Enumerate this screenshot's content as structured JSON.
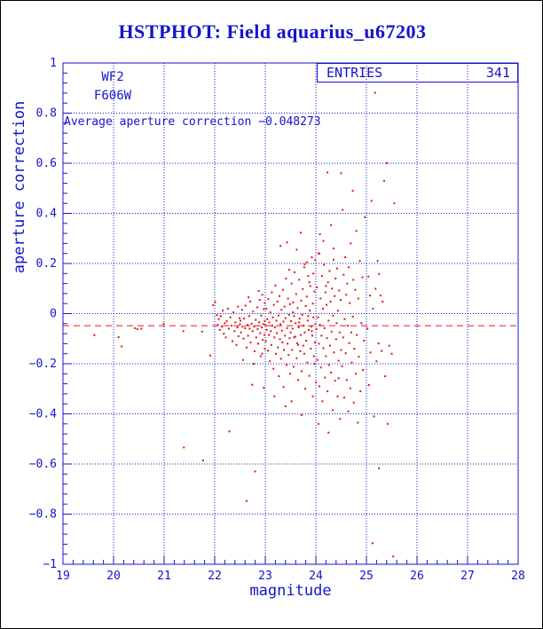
{
  "title": {
    "text": "HSTPHOT: Field aquarius_u67203"
  },
  "stats_box": {
    "label": "ENTRIES",
    "value": "341"
  },
  "annotations": {
    "camera": "WF2",
    "filter": "F606W",
    "average_text": "Average aperture correction −0.048273"
  },
  "axes": {
    "xlabel": "magnitude",
    "ylabel": "aperture correction",
    "x_tick_values": [
      19,
      20,
      21,
      22,
      23,
      24,
      25,
      26,
      27,
      28
    ],
    "x_tick_labels": [
      "19",
      "20",
      "21",
      "22",
      "23",
      "24",
      "25",
      "26",
      "27",
      "28"
    ],
    "y_tick_values": [
      1,
      0.8,
      0.6,
      0.4,
      0.2,
      0,
      -0.2,
      -0.4,
      -0.6,
      -0.8,
      -1
    ],
    "y_tick_labels": [
      "1",
      "0.8",
      "0.6",
      "0.4",
      "0.2",
      "0",
      "−0.2",
      "−0.4",
      "−0.6",
      "−0.8",
      "−1"
    ],
    "x_minor_step": 0.2,
    "y_minor_step": 0.04
  },
  "colors": {
    "axis": "#1414cd",
    "grid": "#1414cd",
    "marker": "#e51212",
    "average_line": "#e51212",
    "title": "#1414cd",
    "border": "#000000",
    "background": "#ffffff"
  },
  "chart_data": {
    "type": "scatter",
    "title": "HSTPHOT: Field aquarius_u67203",
    "xlabel": "magnitude",
    "ylabel": "aperture correction",
    "xlim": [
      19,
      28
    ],
    "ylim": [
      -1,
      1
    ],
    "grid": "dotted at major ticks, both axes",
    "legend_position": "none",
    "entries": 341,
    "average_line": {
      "y": -0.048273,
      "style": "dashed",
      "color": "#e51212"
    },
    "marker": {
      "shape": "square",
      "size": 2,
      "color": "#e51212"
    },
    "points": [
      [
        19.62,
        -0.086
      ],
      [
        20.1,
        -0.094
      ],
      [
        20.16,
        -0.131
      ],
      [
        20.42,
        -0.058
      ],
      [
        20.47,
        -0.062
      ],
      [
        20.55,
        -0.06
      ],
      [
        20.99,
        -0.041
      ],
      [
        21.38,
        -0.07
      ],
      [
        21.39,
        -0.534
      ],
      [
        21.75,
        -0.072
      ],
      [
        21.77,
        -0.586
      ],
      [
        21.91,
        -0.167
      ],
      [
        21.97,
        0.034
      ],
      [
        22.01,
        0.046
      ],
      [
        22.04,
        -0.006
      ],
      [
        22.06,
        -0.045
      ],
      [
        22.08,
        -0.022
      ],
      [
        22.1,
        -0.065
      ],
      [
        22.12,
        -0.01
      ],
      [
        22.14,
        -0.052
      ],
      [
        22.16,
        0.012
      ],
      [
        22.18,
        -0.08
      ],
      [
        22.2,
        -0.038
      ],
      [
        22.22,
        -0.095
      ],
      [
        22.24,
        -0.03
      ],
      [
        22.26,
        0.02
      ],
      [
        22.28,
        -0.06
      ],
      [
        22.29,
        -0.47
      ],
      [
        22.31,
        -0.015
      ],
      [
        22.33,
        -0.048
      ],
      [
        22.35,
        -0.11
      ],
      [
        22.37,
        0.005
      ],
      [
        22.39,
        -0.07
      ],
      [
        22.41,
        -0.035
      ],
      [
        22.43,
        -0.125
      ],
      [
        22.45,
        -0.055
      ],
      [
        22.46,
        0.028
      ],
      [
        22.47,
        -0.09
      ],
      [
        22.49,
        -0.018
      ],
      [
        22.5,
        -0.042
      ],
      [
        22.51,
        -0.028
      ],
      [
        22.52,
        -0.075
      ],
      [
        22.54,
        0.015
      ],
      [
        22.55,
        -0.052
      ],
      [
        22.57,
        -0.1
      ],
      [
        22.58,
        -0.02
      ],
      [
        22.6,
        -0.058
      ],
      [
        22.61,
        0.032
      ],
      [
        22.63,
        -0.748
      ],
      [
        22.63,
        -0.135
      ],
      [
        22.65,
        -0.045
      ],
      [
        22.66,
        -0.088
      ],
      [
        22.68,
        -0.01
      ],
      [
        22.69,
        -0.06
      ],
      [
        22.7,
        0.048
      ],
      [
        22.71,
        -0.115
      ],
      [
        22.73,
        -0.04
      ],
      [
        22.74,
        -0.284
      ],
      [
        22.75,
        -0.07
      ],
      [
        22.76,
        0.008
      ],
      [
        22.78,
        -0.052
      ],
      [
        22.79,
        -0.15
      ],
      [
        22.8,
        -0.63
      ],
      [
        22.81,
        -0.025
      ],
      [
        22.82,
        -0.095
      ],
      [
        22.84,
        0.025
      ],
      [
        22.85,
        -0.062
      ],
      [
        22.86,
        -0.12
      ],
      [
        22.88,
        -0.035
      ],
      [
        22.89,
        0.055
      ],
      [
        22.9,
        -0.078
      ],
      [
        22.91,
        -0.17
      ],
      [
        22.92,
        -0.008
      ],
      [
        22.93,
        -0.055
      ],
      [
        22.94,
        0.075
      ],
      [
        22.95,
        -0.105
      ],
      [
        22.96,
        -0.042
      ],
      [
        22.97,
        -0.296
      ],
      [
        22.97,
        0.018
      ],
      [
        22.98,
        -0.085
      ],
      [
        22.99,
        -0.03
      ],
      [
        22.99,
        -0.14
      ],
      [
        22.56,
        -0.185
      ],
      [
        22.67,
        0.065
      ],
      [
        22.77,
        -0.2
      ],
      [
        22.87,
        0.09
      ],
      [
        22.94,
        -0.16
      ],
      [
        22.99,
        0.042
      ],
      [
        23.0,
        -0.045
      ],
      [
        23.01,
        -0.11
      ],
      [
        23.02,
        0.02
      ],
      [
        23.03,
        -0.065
      ],
      [
        23.04,
        -0.022
      ],
      [
        23.05,
        -0.148
      ],
      [
        23.06,
        0.058
      ],
      [
        23.07,
        -0.085
      ],
      [
        23.08,
        -0.035
      ],
      [
        23.09,
        -0.19
      ],
      [
        23.1,
        0.005
      ],
      [
        23.11,
        -0.07
      ],
      [
        23.12,
        -0.125
      ],
      [
        23.13,
        0.085
      ],
      [
        23.14,
        -0.048
      ],
      [
        23.15,
        -0.015
      ],
      [
        23.16,
        -0.22
      ],
      [
        23.17,
        0.035
      ],
      [
        23.18,
        -0.33
      ],
      [
        23.18,
        -0.095
      ],
      [
        23.19,
        -0.055
      ],
      [
        23.2,
        0.112
      ],
      [
        23.21,
        -0.16
      ],
      [
        23.22,
        -0.028
      ],
      [
        23.23,
        -0.078
      ],
      [
        23.24,
        0.048
      ],
      [
        23.25,
        -0.135
      ],
      [
        23.26,
        -0.008
      ],
      [
        23.27,
        -0.25
      ],
      [
        23.28,
        0.07
      ],
      [
        23.29,
        -0.102
      ],
      [
        23.3,
        0.27
      ],
      [
        23.3,
        -0.042
      ],
      [
        23.31,
        -0.18
      ],
      [
        23.32,
        0.015
      ],
      [
        23.33,
        -0.068
      ],
      [
        23.34,
        -0.115
      ],
      [
        23.35,
        0.095
      ],
      [
        23.36,
        -0.293
      ],
      [
        23.36,
        -0.032
      ],
      [
        23.37,
        -0.145
      ],
      [
        23.38,
        0.028
      ],
      [
        23.39,
        -0.088
      ],
      [
        23.4,
        -0.37
      ],
      [
        23.4,
        -0.018
      ],
      [
        23.41,
        0.14
      ],
      [
        23.42,
        -0.205
      ],
      [
        23.43,
        0.284
      ],
      [
        23.43,
        -0.058
      ],
      [
        23.44,
        -0.12
      ],
      [
        23.45,
        0.06
      ],
      [
        23.46,
        -0.165
      ],
      [
        23.47,
        -0.005
      ],
      [
        23.47,
        0.175
      ],
      [
        23.48,
        -0.098
      ],
      [
        23.49,
        -0.24
      ],
      [
        23.49,
        0.038
      ],
      [
        23.5,
        -0.075
      ],
      [
        23.51,
        -0.03
      ],
      [
        23.52,
        0.12
      ],
      [
        23.53,
        -0.145
      ],
      [
        23.54,
        -0.06
      ],
      [
        23.55,
        0.045
      ],
      [
        23.56,
        -0.212
      ],
      [
        23.57,
        -0.01
      ],
      [
        23.58,
        0.165
      ],
      [
        23.59,
        -0.092
      ],
      [
        23.6,
        -0.038
      ],
      [
        23.61,
        0.078
      ],
      [
        23.62,
        -0.178
      ],
      [
        23.63,
        -0.118
      ],
      [
        23.64,
        0.022
      ],
      [
        23.65,
        -0.265
      ],
      [
        23.66,
        -0.055
      ],
      [
        23.67,
        0.135
      ],
      [
        23.68,
        -0.02
      ],
      [
        23.69,
        -0.15
      ],
      [
        23.7,
        0.323
      ],
      [
        23.7,
        -0.085
      ],
      [
        23.71,
        0.052
      ],
      [
        23.72,
        -0.23
      ],
      [
        23.73,
        -0.005
      ],
      [
        23.74,
        0.098
      ],
      [
        23.75,
        -0.128
      ],
      [
        23.76,
        -0.048
      ],
      [
        23.77,
        0.185
      ],
      [
        23.78,
        0.197
      ],
      [
        23.78,
        -0.075
      ],
      [
        23.79,
        -0.3
      ],
      [
        23.8,
        0.03
      ],
      [
        23.81,
        -0.108
      ],
      [
        23.82,
        0.068
      ],
      [
        23.83,
        -0.195
      ],
      [
        23.84,
        -0.028
      ],
      [
        23.85,
        0.15
      ],
      [
        23.86,
        -0.065
      ],
      [
        23.87,
        -0.248
      ],
      [
        23.88,
        0.012
      ],
      [
        23.89,
        0.11
      ],
      [
        23.9,
        -0.14
      ],
      [
        23.91,
        -0.052
      ],
      [
        23.92,
        0.225
      ],
      [
        23.93,
        -0.088
      ],
      [
        23.94,
        -0.33
      ],
      [
        23.94,
        0.04
      ],
      [
        23.95,
        -0.015
      ],
      [
        23.96,
        -0.17
      ],
      [
        23.97,
        0.088
      ],
      [
        23.98,
        -0.115
      ],
      [
        23.99,
        0.213
      ],
      [
        23.99,
        -0.042
      ],
      [
        24.0,
        -0.275
      ],
      [
        23.52,
        -0.35
      ],
      [
        23.62,
        0.255
      ],
      [
        23.72,
        -0.405
      ],
      [
        23.82,
        0.205
      ],
      [
        23.57,
        -0.095
      ],
      [
        23.67,
        -0.035
      ],
      [
        23.77,
        -0.16
      ],
      [
        23.87,
        0.125
      ],
      [
        23.92,
        -0.07
      ],
      [
        23.97,
        -0.2
      ],
      [
        23.55,
        0.005
      ],
      [
        23.65,
        -0.125
      ],
      [
        23.85,
        -0.01
      ],
      [
        23.95,
        0.16
      ],
      [
        24.01,
        -0.062
      ],
      [
        24.02,
        0.105
      ],
      [
        24.03,
        -0.185
      ],
      [
        24.04,
        -0.015
      ],
      [
        24.05,
        0.24
      ],
      [
        24.06,
        -0.12
      ],
      [
        24.07,
        0.24
      ],
      [
        24.07,
        -0.29
      ],
      [
        24.08,
        0.317
      ],
      [
        24.08,
        -0.045
      ],
      [
        24.09,
        0.06
      ],
      [
        24.1,
        -0.215
      ],
      [
        24.11,
        -0.088
      ],
      [
        24.12,
        0.15
      ],
      [
        24.13,
        -0.35
      ],
      [
        24.14,
        0.02
      ],
      [
        24.15,
        -0.138
      ],
      [
        24.16,
        0.195
      ],
      [
        24.17,
        -0.058
      ],
      [
        24.18,
        -0.255
      ],
      [
        24.19,
        0.085
      ],
      [
        24.2,
        -0.17
      ],
      [
        24.21,
        0.035
      ],
      [
        24.22,
        -0.098
      ],
      [
        24.23,
        0.563
      ],
      [
        24.23,
        -0.31
      ],
      [
        24.24,
        0.125
      ],
      [
        24.25,
        -0.028
      ],
      [
        24.26,
        -0.205
      ],
      [
        24.27,
        0.17
      ],
      [
        24.28,
        -0.128
      ],
      [
        24.29,
        0.048
      ],
      [
        24.3,
        0.353
      ],
      [
        24.3,
        -0.235
      ],
      [
        24.31,
        -0.072
      ],
      [
        24.32,
        0.1
      ],
      [
        24.33,
        -0.385
      ],
      [
        24.34,
        -0.008
      ],
      [
        24.35,
        0.215
      ],
      [
        24.36,
        -0.155
      ],
      [
        24.37,
        0.07
      ],
      [
        24.38,
        -0.268
      ],
      [
        24.39,
        0.14
      ],
      [
        24.4,
        -0.102
      ],
      [
        24.41,
        -0.038
      ],
      [
        24.42,
        0.18
      ],
      [
        24.43,
        -0.33
      ],
      [
        24.44,
        0.012
      ],
      [
        24.45,
        -0.188
      ],
      [
        24.46,
        0.092
      ],
      [
        24.47,
        -0.075
      ],
      [
        24.48,
        -0.42
      ],
      [
        24.49,
        0.055
      ],
      [
        24.5,
        -0.145
      ],
      [
        24.05,
        -0.44
      ],
      [
        24.15,
        0.29
      ],
      [
        24.25,
        -0.475
      ],
      [
        24.35,
        0.26
      ],
      [
        24.45,
        -0.258
      ],
      [
        24.2,
        0.11
      ],
      [
        24.5,
        0.56
      ],
      [
        24.52,
        -0.21
      ],
      [
        24.53,
        0.414
      ],
      [
        24.54,
        -0.095
      ],
      [
        24.55,
        0.155
      ],
      [
        24.56,
        -0.335
      ],
      [
        24.57,
        -0.022
      ],
      [
        24.58,
        0.225
      ],
      [
        24.59,
        -0.158
      ],
      [
        24.6,
        0.075
      ],
      [
        24.61,
        -0.265
      ],
      [
        24.62,
        0.12
      ],
      [
        24.63,
        -0.048
      ],
      [
        24.64,
        -0.39
      ],
      [
        24.65,
        0.185
      ],
      [
        24.66,
        -0.118
      ],
      [
        24.67,
        0.042
      ],
      [
        24.68,
        -0.298
      ],
      [
        24.69,
        0.28
      ],
      [
        24.7,
        -0.075
      ],
      [
        24.71,
        -0.195
      ],
      [
        24.73,
        0.49
      ],
      [
        24.73,
        -0.012
      ],
      [
        24.74,
        0.135
      ],
      [
        24.75,
        -0.355
      ],
      [
        24.76,
        -0.14
      ],
      [
        24.78,
        0.095
      ],
      [
        24.79,
        -0.24
      ],
      [
        24.8,
        0.33
      ],
      [
        24.81,
        -0.085
      ],
      [
        24.83,
        -0.435
      ],
      [
        24.84,
        0.06
      ],
      [
        24.85,
        -0.172
      ],
      [
        24.87,
        0.21
      ],
      [
        24.88,
        -0.31
      ],
      [
        24.9,
        -0.038
      ],
      [
        24.92,
        0.145
      ],
      [
        24.93,
        -0.225
      ],
      [
        24.95,
        -0.108
      ],
      [
        24.97,
        0.385
      ],
      [
        25.02,
        -0.06
      ],
      [
        25.04,
        0.148
      ],
      [
        25.05,
        -0.285
      ],
      [
        25.07,
        0.072
      ],
      [
        25.08,
        -0.155
      ],
      [
        25.1,
        0.45
      ],
      [
        25.12,
        -0.916
      ],
      [
        25.13,
        0.02
      ],
      [
        25.15,
        -0.41
      ],
      [
        25.17,
        0.881
      ],
      [
        25.18,
        0.099
      ],
      [
        25.2,
        -0.19
      ],
      [
        25.22,
        0.21
      ],
      [
        25.24,
        -0.119
      ],
      [
        25.25,
        0.158
      ],
      [
        25.25,
        -0.617
      ],
      [
        25.28,
        0.072
      ],
      [
        25.3,
        -0.149
      ],
      [
        25.32,
        0.048
      ],
      [
        25.35,
        0.53
      ],
      [
        25.37,
        -0.25
      ],
      [
        25.4,
        0.601
      ],
      [
        25.42,
        -0.44
      ],
      [
        25.45,
        -0.128
      ],
      [
        25.5,
        -0.16
      ],
      [
        25.53,
        -0.969
      ],
      [
        25.55,
        0.44
      ]
    ]
  }
}
